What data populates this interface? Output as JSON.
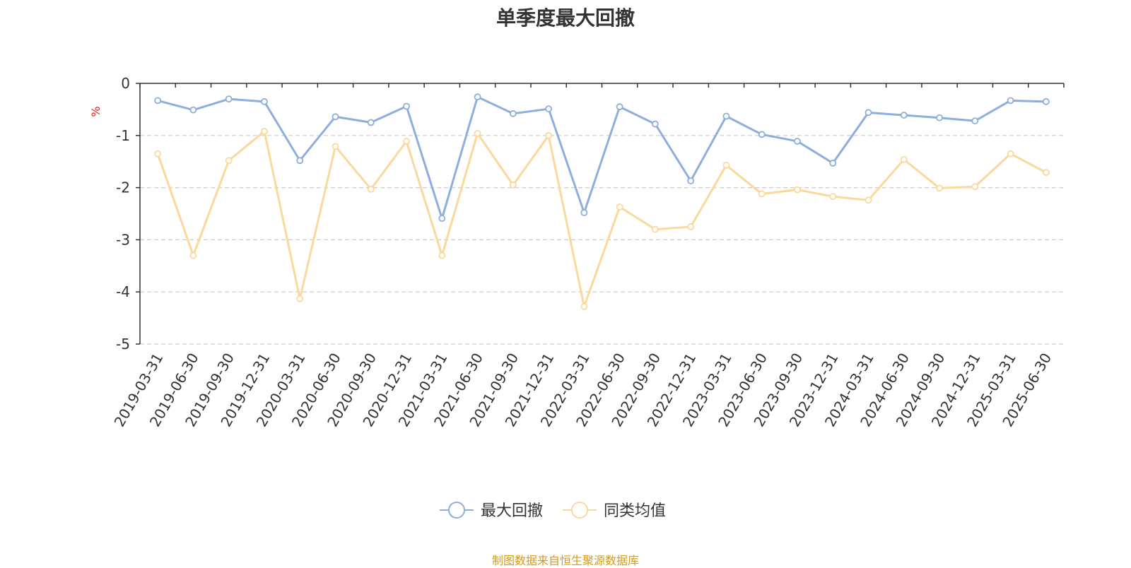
{
  "chart_data": {
    "type": "line",
    "title": "单季度最大回撤",
    "ylabel": "%",
    "ylim": [
      -5,
      0
    ],
    "yticks": [
      0,
      -1,
      -2,
      -3,
      -4,
      -5
    ],
    "categories": [
      "2019-03-31",
      "2019-06-30",
      "2019-09-30",
      "2019-12-31",
      "2020-03-31",
      "2020-06-30",
      "2020-09-30",
      "2020-12-31",
      "2021-03-31",
      "2021-06-30",
      "2021-09-30",
      "2021-12-31",
      "2022-03-31",
      "2022-06-30",
      "2022-09-30",
      "2022-12-31",
      "2023-03-31",
      "2023-06-30",
      "2023-09-30",
      "2023-12-31",
      "2024-03-31",
      "2024-06-30",
      "2024-09-30",
      "2024-12-31",
      "2025-03-31",
      "2025-06-30"
    ],
    "series": [
      {
        "name": "最大回撤",
        "color": "#8eaedb",
        "values": [
          -0.33,
          -0.51,
          -0.3,
          -0.35,
          -1.48,
          -0.64,
          -0.75,
          -0.44,
          -2.59,
          -0.26,
          -0.58,
          -0.49,
          -2.48,
          -0.45,
          -0.78,
          -1.87,
          -0.63,
          -0.98,
          -1.11,
          -1.53,
          -0.56,
          -0.61,
          -0.66,
          -0.72,
          -0.33,
          -0.35
        ]
      },
      {
        "name": "同类均值",
        "color": "#fbd89c",
        "values": [
          -1.35,
          -3.3,
          -1.48,
          -0.92,
          -4.13,
          -1.21,
          -2.03,
          -1.11,
          -3.3,
          -0.96,
          -1.95,
          -1.0,
          -4.28,
          -2.37,
          -2.8,
          -2.75,
          -1.57,
          -2.12,
          -2.04,
          -2.17,
          -2.24,
          -1.46,
          -2.01,
          -1.98,
          -1.35,
          -1.71
        ]
      }
    ],
    "grid": true,
    "legend_position": "bottom-center"
  },
  "source_note": "制图数据来自恒生聚源数据库"
}
